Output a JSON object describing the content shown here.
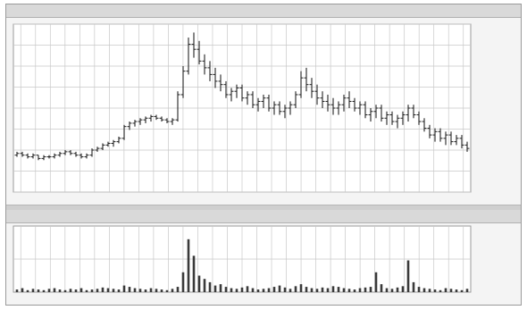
{
  "window": {
    "title": "",
    "top_right": ""
  },
  "volume_panel": {
    "title": "",
    "top_right": ""
  },
  "colors": {
    "background": "#f4f4f4",
    "grid": "#c8c8c8",
    "bars": "#222222",
    "volume": "#3a3a3a"
  },
  "chart_data": [
    {
      "type": "bar",
      "subtype": "ohlc",
      "title": "",
      "price_axis_labels": [
        "",
        "",
        "",
        "",
        "",
        "",
        "",
        "",
        ""
      ],
      "ylim": [
        0,
        100
      ],
      "x_tick_labels": [
        "",
        "",
        "",
        "",
        "",
        "",
        "",
        "",
        "",
        "",
        "",
        "",
        "",
        "",
        "",
        "",
        "",
        "",
        "",
        "",
        "",
        "",
        "",
        "",
        "",
        "",
        "",
        "",
        "",
        "",
        ""
      ],
      "series": [
        {
          "values": [
            [
              22,
              24,
              21,
              23
            ],
            [
              23,
              24,
              21,
              22
            ],
            [
              22,
              23,
              20,
              21
            ],
            [
              21,
              23,
              20,
              22
            ],
            [
              22,
              22,
              19,
              20
            ],
            [
              20,
              22,
              19,
              21
            ],
            [
              21,
              22,
              20,
              21
            ],
            [
              21,
              23,
              20,
              22
            ],
            [
              22,
              24,
              21,
              23
            ],
            [
              23,
              25,
              22,
              24
            ],
            [
              24,
              25,
              22,
              23
            ],
            [
              23,
              24,
              21,
              22
            ],
            [
              22,
              23,
              20,
              21
            ],
            [
              21,
              23,
              20,
              22
            ],
            [
              22,
              26,
              21,
              25
            ],
            [
              25,
              27,
              24,
              26
            ],
            [
              26,
              29,
              25,
              28
            ],
            [
              28,
              30,
              27,
              29
            ],
            [
              29,
              31,
              27,
              30
            ],
            [
              30,
              33,
              29,
              32
            ],
            [
              32,
              40,
              31,
              39
            ],
            [
              39,
              42,
              37,
              41
            ],
            [
              41,
              43,
              39,
              42
            ],
            [
              42,
              44,
              40,
              43
            ],
            [
              43,
              45,
              41,
              44
            ],
            [
              44,
              46,
              42,
              45
            ],
            [
              45,
              46,
              43,
              44
            ],
            [
              44,
              45,
              42,
              43
            ],
            [
              43,
              44,
              41,
              42
            ],
            [
              42,
              44,
              40,
              43
            ],
            [
              43,
              60,
              42,
              58
            ],
            [
              58,
              75,
              56,
              72
            ],
            [
              72,
              92,
              70,
              88
            ],
            [
              88,
              95,
              80,
              85
            ],
            [
              85,
              90,
              76,
              78
            ],
            [
              78,
              82,
              70,
              74
            ],
            [
              74,
              78,
              66,
              70
            ],
            [
              70,
              74,
              62,
              66
            ],
            [
              66,
              70,
              60,
              64
            ],
            [
              64,
              66,
              56,
              58
            ],
            [
              58,
              62,
              54,
              60
            ],
            [
              60,
              64,
              56,
              62
            ],
            [
              62,
              64,
              54,
              56
            ],
            [
              56,
              60,
              52,
              58
            ],
            [
              58,
              60,
              50,
              52
            ],
            [
              52,
              56,
              48,
              54
            ],
            [
              54,
              58,
              50,
              56
            ],
            [
              56,
              58,
              48,
              50
            ],
            [
              50,
              54,
              46,
              52
            ],
            [
              52,
              54,
              46,
              48
            ],
            [
              48,
              52,
              44,
              50
            ],
            [
              50,
              54,
              46,
              52
            ],
            [
              52,
              60,
              50,
              58
            ],
            [
              58,
              72,
              56,
              68
            ],
            [
              68,
              74,
              60,
              64
            ],
            [
              64,
              68,
              56,
              60
            ],
            [
              60,
              64,
              52,
              56
            ],
            [
              56,
              60,
              50,
              54
            ],
            [
              54,
              58,
              48,
              52
            ],
            [
              52,
              56,
              46,
              50
            ],
            [
              50,
              54,
              46,
              52
            ],
            [
              52,
              58,
              48,
              56
            ],
            [
              56,
              60,
              50,
              54
            ],
            [
              54,
              56,
              48,
              50
            ],
            [
              50,
              54,
              46,
              52
            ],
            [
              52,
              54,
              44,
              46
            ],
            [
              46,
              50,
              42,
              48
            ],
            [
              48,
              52,
              44,
              50
            ],
            [
              50,
              52,
              42,
              44
            ],
            [
              44,
              48,
              40,
              46
            ],
            [
              46,
              48,
              40,
              42
            ],
            [
              42,
              46,
              38,
              44
            ],
            [
              44,
              48,
              40,
              46
            ],
            [
              46,
              52,
              42,
              50
            ],
            [
              50,
              52,
              44,
              46
            ],
            [
              46,
              48,
              40,
              42
            ],
            [
              42,
              44,
              36,
              38
            ],
            [
              38,
              40,
              32,
              34
            ],
            [
              34,
              38,
              30,
              36
            ],
            [
              36,
              38,
              30,
              32
            ],
            [
              32,
              36,
              28,
              34
            ],
            [
              34,
              36,
              28,
              30
            ],
            [
              30,
              34,
              28,
              32
            ],
            [
              32,
              34,
              26,
              28
            ],
            [
              28,
              30,
              24,
              26
            ]
          ]
        }
      ]
    },
    {
      "type": "bar",
      "title": "",
      "axis_labels": [
        "",
        ""
      ],
      "ylim": [
        0,
        100
      ],
      "values": [
        4,
        6,
        3,
        5,
        4,
        3,
        5,
        6,
        4,
        3,
        5,
        4,
        6,
        3,
        4,
        5,
        7,
        6,
        5,
        4,
        10,
        8,
        6,
        5,
        4,
        6,
        5,
        4,
        3,
        5,
        8,
        30,
        80,
        55,
        25,
        20,
        15,
        10,
        12,
        8,
        6,
        5,
        7,
        9,
        6,
        4,
        5,
        6,
        8,
        10,
        7,
        5,
        9,
        12,
        8,
        6,
        5,
        7,
        6,
        9,
        8,
        6,
        5,
        4,
        6,
        7,
        8,
        30,
        12,
        6,
        5,
        7,
        9,
        48,
        15,
        8,
        6,
        5,
        4,
        3,
        6,
        5,
        4,
        3,
        5
      ]
    }
  ]
}
